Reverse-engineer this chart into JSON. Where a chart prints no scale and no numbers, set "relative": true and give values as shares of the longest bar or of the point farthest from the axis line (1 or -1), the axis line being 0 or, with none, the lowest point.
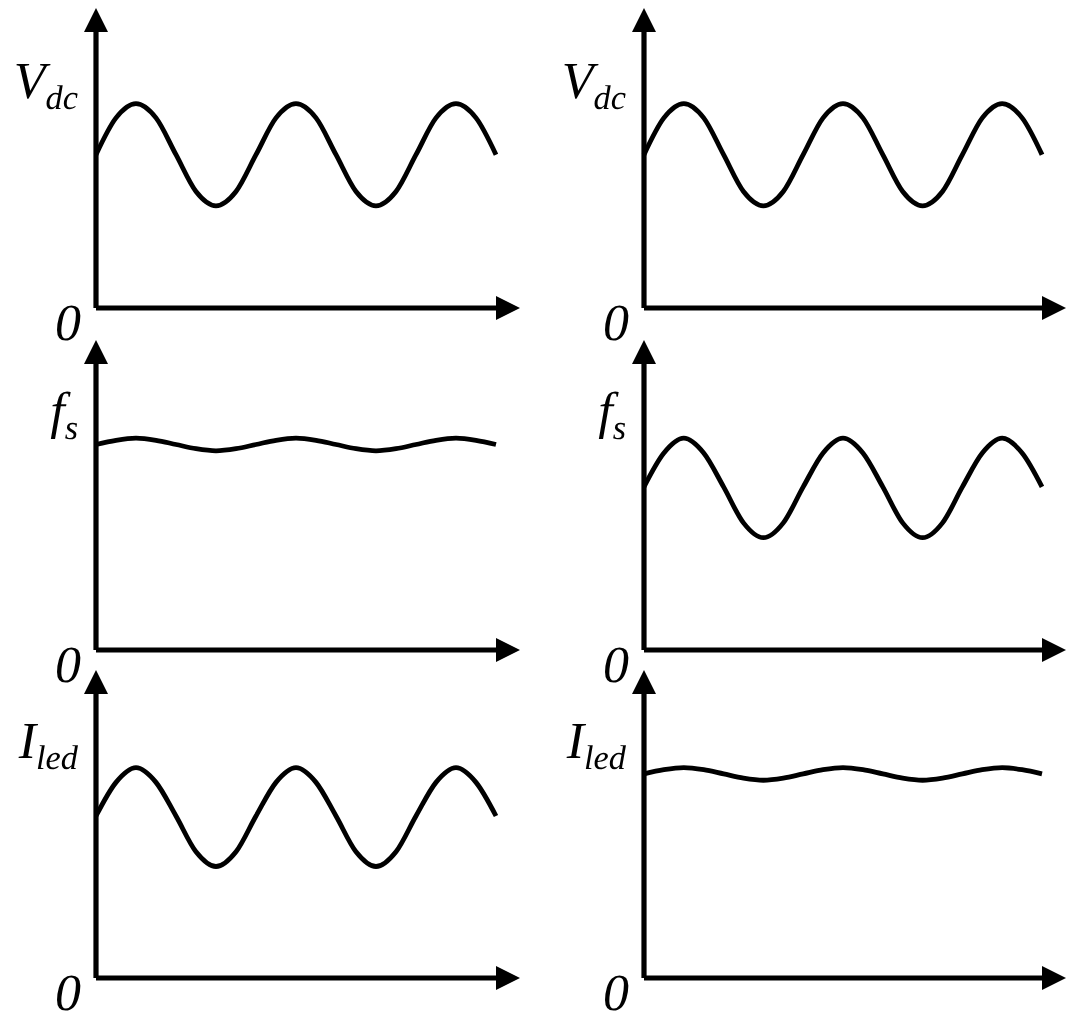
{
  "chart_data": [
    {
      "type": "line",
      "ylabel": "V$_{dc}$",
      "categories": [
        null,
        null,
        null,
        null,
        null,
        null,
        null,
        null,
        null,
        null,
        null,
        null,
        null,
        null,
        null,
        null,
        null,
        null,
        null,
        null,
        null
      ],
      "relative": true,
      "marker": "none",
      "color": "#000000",
      "values": [
        0.75,
        0.93,
        1,
        0.93,
        0.75,
        0.57,
        0.5,
        0.57,
        0.75,
        0.93,
        1,
        0.93,
        0.75,
        0.57,
        0.5,
        0.57,
        0.75,
        0.93,
        1,
        0.93,
        0.75
      ],
      "annotations": [
        "0"
      ]
    },
    {
      "type": "line",
      "ylabel": "V$_{dc}$",
      "categories": [
        null,
        null,
        null,
        null,
        null,
        null,
        null,
        null,
        null,
        null,
        null,
        null,
        null,
        null,
        null,
        null,
        null,
        null,
        null,
        null,
        null
      ],
      "relative": true,
      "marker": "none",
      "color": "#000000",
      "values": [
        0.75,
        0.93,
        1,
        0.93,
        0.75,
        0.57,
        0.5,
        0.57,
        0.75,
        0.93,
        1,
        0.93,
        0.75,
        0.57,
        0.5,
        0.57,
        0.75,
        0.93,
        1,
        0.93,
        0.75
      ],
      "annotations": [
        "0"
      ]
    },
    {
      "type": "line",
      "ylabel": "f$_{s}$",
      "categories": [
        null,
        null,
        null,
        null,
        null,
        null,
        null,
        null,
        null,
        null,
        null,
        null,
        null,
        null,
        null,
        null,
        null,
        null,
        null,
        null,
        null
      ],
      "relative": true,
      "marker": "none",
      "color": "#000000",
      "values": [
        0.97,
        0.99,
        1,
        0.99,
        0.97,
        0.95,
        0.94,
        0.95,
        0.97,
        0.99,
        1,
        0.99,
        0.97,
        0.95,
        0.94,
        0.95,
        0.97,
        0.99,
        1,
        0.99,
        0.97
      ],
      "annotations": [
        "0"
      ]
    },
    {
      "type": "line",
      "ylabel": "f$_{s}$",
      "categories": [
        null,
        null,
        null,
        null,
        null,
        null,
        null,
        null,
        null,
        null,
        null,
        null,
        null,
        null,
        null,
        null,
        null,
        null,
        null,
        null,
        null
      ],
      "relative": true,
      "marker": "none",
      "color": "#000000",
      "values": [
        0.77,
        0.93,
        1,
        0.93,
        0.77,
        0.6,
        0.53,
        0.6,
        0.77,
        0.93,
        1,
        0.93,
        0.77,
        0.6,
        0.53,
        0.6,
        0.77,
        0.93,
        1,
        0.93,
        0.77
      ],
      "annotations": [
        "0"
      ]
    },
    {
      "type": "line",
      "ylabel": "I$_{led}$",
      "categories": [
        null,
        null,
        null,
        null,
        null,
        null,
        null,
        null,
        null,
        null,
        null,
        null,
        null,
        null,
        null,
        null,
        null,
        null,
        null,
        null,
        null
      ],
      "relative": true,
      "marker": "none",
      "color": "#000000",
      "values": [
        0.77,
        0.93,
        1,
        0.93,
        0.77,
        0.6,
        0.53,
        0.6,
        0.77,
        0.93,
        1,
        0.93,
        0.77,
        0.6,
        0.53,
        0.6,
        0.77,
        0.93,
        1,
        0.93,
        0.77
      ],
      "annotations": [
        "0"
      ]
    },
    {
      "type": "line",
      "ylabel": "I$_{led}$",
      "categories": [
        null,
        null,
        null,
        null,
        null,
        null,
        null,
        null,
        null,
        null,
        null,
        null,
        null,
        null,
        null,
        null,
        null,
        null,
        null,
        null,
        null
      ],
      "relative": true,
      "marker": "none",
      "color": "#000000",
      "values": [
        0.97,
        0.99,
        1,
        0.99,
        0.97,
        0.95,
        0.94,
        0.95,
        0.97,
        0.99,
        1,
        0.99,
        0.97,
        0.95,
        0.94,
        0.95,
        0.97,
        0.99,
        1,
        0.99,
        0.97
      ],
      "annotations": [
        "0"
      ]
    }
  ]
}
